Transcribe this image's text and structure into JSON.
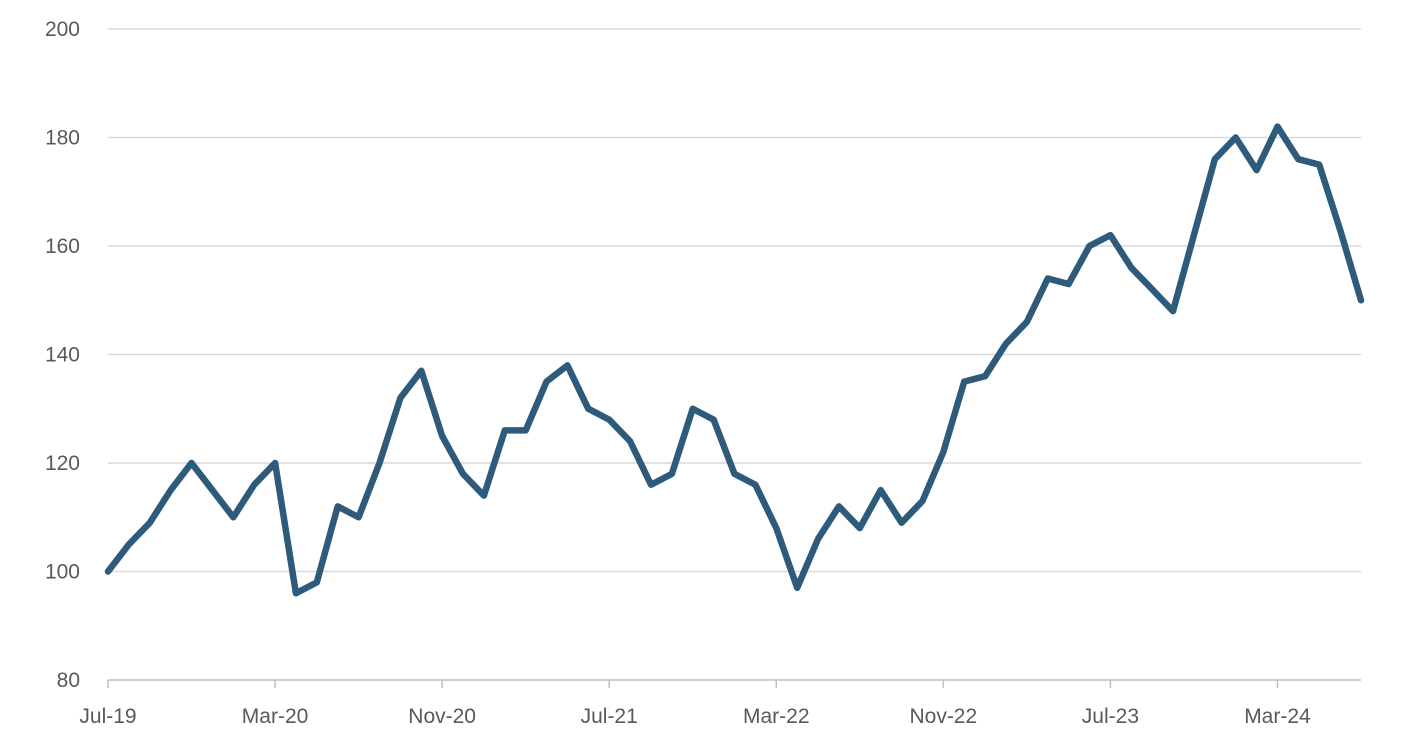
{
  "chart_data": {
    "type": "line",
    "title": "",
    "xlabel": "",
    "ylabel": "",
    "ylim": [
      80,
      200
    ],
    "yticks": [
      80,
      100,
      120,
      140,
      160,
      180,
      200
    ],
    "xlim": [
      "2019-07",
      "2024-07"
    ],
    "xticks": [
      "Jul-19",
      "Mar-20",
      "Nov-20",
      "Jul-21",
      "Mar-22",
      "Nov-22",
      "Jul-23",
      "Mar-24"
    ],
    "grid": true,
    "legend": "none",
    "colors": {
      "series": "#2e5b7b"
    },
    "series": [
      {
        "x": [
          "2019-07",
          "2019-08",
          "2019-09",
          "2019-10",
          "2019-11",
          "2019-12",
          "2020-01",
          "2020-02",
          "2020-03",
          "2020-04",
          "2020-05",
          "2020-06",
          "2020-07",
          "2020-08",
          "2020-09",
          "2020-10",
          "2020-11",
          "2020-12",
          "2021-01",
          "2021-02",
          "2021-03",
          "2021-04",
          "2021-05",
          "2021-06",
          "2021-07",
          "2021-08",
          "2021-09",
          "2021-10",
          "2021-11",
          "2021-12",
          "2022-01",
          "2022-02",
          "2022-03",
          "2022-04",
          "2022-05",
          "2022-06",
          "2022-07",
          "2022-08",
          "2022-09",
          "2022-10",
          "2022-11",
          "2022-12",
          "2023-01",
          "2023-02",
          "2023-03",
          "2023-04",
          "2023-05",
          "2023-06",
          "2023-07",
          "2023-08",
          "2023-09",
          "2023-10",
          "2023-11",
          "2023-12",
          "2024-01",
          "2024-02",
          "2024-03",
          "2024-04",
          "2024-05",
          "2024-06",
          "2024-07"
        ],
        "values": [
          100,
          105,
          109,
          115,
          120,
          115,
          110,
          116,
          120,
          96,
          98,
          112,
          110,
          120,
          132,
          137,
          125,
          118,
          114,
          126,
          126,
          135,
          138,
          130,
          128,
          124,
          116,
          118,
          130,
          128,
          118,
          116,
          108,
          97,
          106,
          112,
          108,
          115,
          109,
          113,
          122,
          135,
          136,
          142,
          146,
          154,
          153,
          160,
          162,
          156,
          152,
          148,
          162,
          176,
          180,
          174,
          182,
          176,
          175,
          163,
          150
        ]
      }
    ]
  }
}
